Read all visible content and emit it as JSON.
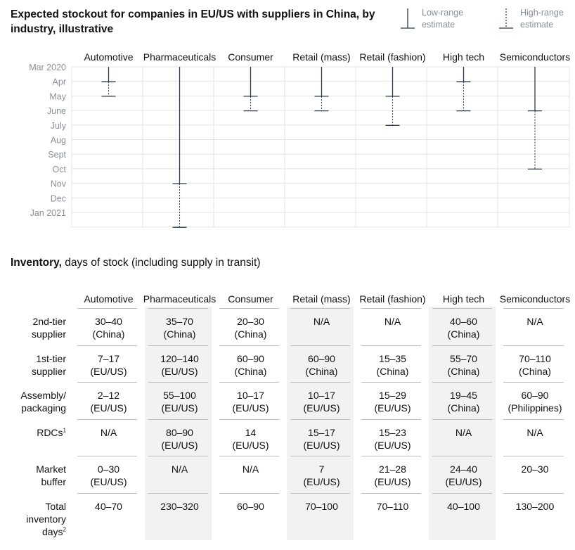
{
  "title": "Expected stockout for companies in EU/US with suppliers in China, by industry, illustrative",
  "legend": {
    "low": "Low-range estimate",
    "high": "High-range estimate"
  },
  "chart_data": {
    "type": "range",
    "title": "Expected stockout for companies in EU/US with suppliers in China, by industry, illustrative",
    "categories": [
      "Automotive",
      "Pharmaceuticals",
      "Consumer",
      "Retail (mass)",
      "Retail (fashion)",
      "High tech",
      "Semiconductors"
    ],
    "months": [
      "Mar 2020",
      "Apr",
      "May",
      "June",
      "July",
      "Aug",
      "Sept",
      "Oct",
      "Nov",
      "Dec",
      "Jan 2021"
    ],
    "start_index": 0,
    "low_estimate_index": [
      1,
      8,
      2,
      2,
      2,
      1,
      3
    ],
    "high_estimate_index": [
      2,
      11,
      3,
      3,
      4,
      3,
      7
    ]
  },
  "inventory": {
    "title_bold": "Inventory,",
    "title_rest": " days of stock (including supply in transit)",
    "columns": [
      "Automotive",
      "Pharmaceuticals",
      "Consumer",
      "Retail (mass)",
      "Retail (fashion)",
      "High tech",
      "Semiconductors"
    ],
    "rows": [
      {
        "label1": "2nd-tier",
        "label2": "supplier",
        "sup": "",
        "cells": [
          [
            "30–40",
            "(China)"
          ],
          [
            "35–70",
            "(China)"
          ],
          [
            "20–30",
            "(China)"
          ],
          [
            "N/A",
            ""
          ],
          [
            "N/A",
            ""
          ],
          [
            "40–60",
            "(China)"
          ],
          [
            "N/A",
            ""
          ]
        ]
      },
      {
        "label1": "1st-tier",
        "label2": "supplier",
        "sup": "",
        "cells": [
          [
            "7–17",
            "(EU/US)"
          ],
          [
            "120–140",
            "(EU/US)"
          ],
          [
            "60–90",
            "(China)"
          ],
          [
            "60–90",
            "(China)"
          ],
          [
            "15–35",
            "(China)"
          ],
          [
            "55–70",
            "(China)"
          ],
          [
            "70–110",
            "(China)"
          ]
        ]
      },
      {
        "label1": "Assembly/",
        "label2": "packaging",
        "sup": "",
        "cells": [
          [
            "2–12",
            "(EU/US)"
          ],
          [
            "55–100",
            "(EU/US)"
          ],
          [
            "10–17",
            "(EU/US)"
          ],
          [
            "10–17",
            "(EU/US)"
          ],
          [
            "15–29",
            "(EU/US)"
          ],
          [
            "19–45",
            "(China)"
          ],
          [
            "60–90",
            "(Philippines)"
          ]
        ]
      },
      {
        "label1": "RDCs",
        "label2": "",
        "sup": "1",
        "cells": [
          [
            "N/A",
            ""
          ],
          [
            "80–90",
            "(EU/US)"
          ],
          [
            "14",
            "(EU/US)"
          ],
          [
            "15–17",
            "(EU/US)"
          ],
          [
            "15–23",
            "(EU/US)"
          ],
          [
            "N/A",
            ""
          ],
          [
            "N/A",
            ""
          ]
        ]
      },
      {
        "label1": "Market",
        "label2": "buffer",
        "sup": "",
        "cells": [
          [
            "0–30",
            "(EU/US)"
          ],
          [
            "N/A",
            ""
          ],
          [
            "N/A",
            ""
          ],
          [
            "7",
            "(EU/US)"
          ],
          [
            "21–28",
            "(EU/US)"
          ],
          [
            "24–40",
            "(EU/US)"
          ],
          [
            "20–30",
            ""
          ]
        ]
      },
      {
        "label1": "Total",
        "label2": "inventory",
        "label3": "days",
        "sup": "2",
        "cells": [
          [
            "40–70",
            ""
          ],
          [
            "230–320",
            ""
          ],
          [
            "60–90",
            ""
          ],
          [
            "70–100",
            ""
          ],
          [
            "70–110",
            ""
          ],
          [
            "40–100",
            ""
          ],
          [
            "130–200",
            ""
          ]
        ]
      }
    ]
  }
}
